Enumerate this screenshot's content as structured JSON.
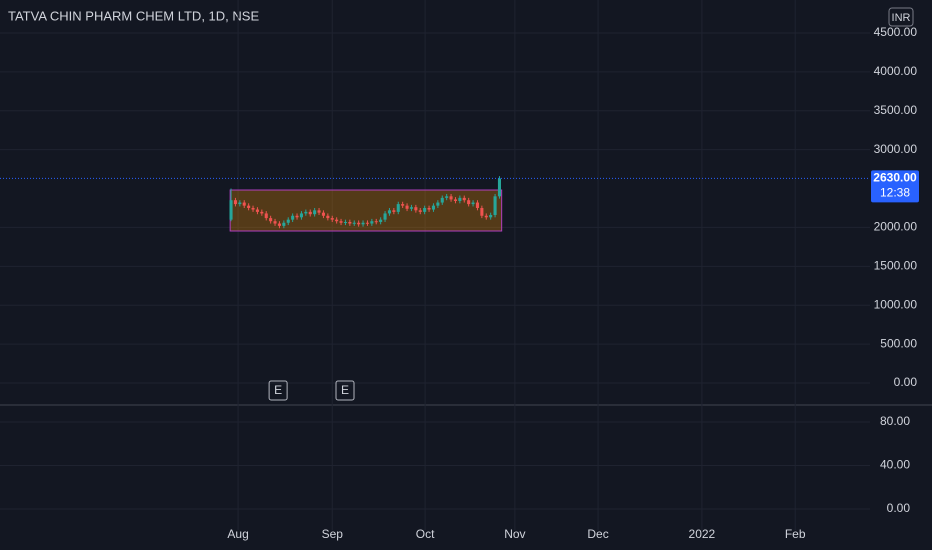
{
  "chart_data": {
    "type": "candlestick",
    "title": "TATVA CHIN PHARM CHEM LTD, 1D, NSE",
    "currency": "INR",
    "up_color": "#26a69a",
    "down_color": "#ef5350",
    "open": [
      2100,
      2350,
      2300,
      2320,
      2280,
      2250,
      2230,
      2200,
      2180,
      2120,
      2080,
      2050,
      2020,
      2060,
      2100,
      2150,
      2130,
      2180,
      2200,
      2170,
      2220,
      2190,
      2150,
      2120,
      2100,
      2080,
      2060,
      2070,
      2050,
      2060,
      2040,
      2060,
      2050,
      2080,
      2070,
      2100,
      2180,
      2220,
      2200,
      2300,
      2280,
      2240,
      2260,
      2220,
      2200,
      2250,
      2230,
      2280,
      2320,
      2380,
      2400,
      2360,
      2340,
      2380,
      2350,
      2300,
      2320,
      2250,
      2150,
      2130,
      2160,
      2400
    ],
    "high": [
      2500,
      2380,
      2350,
      2350,
      2310,
      2280,
      2260,
      2230,
      2210,
      2150,
      2110,
      2080,
      2090,
      2130,
      2180,
      2180,
      2210,
      2230,
      2230,
      2250,
      2250,
      2220,
      2180,
      2150,
      2130,
      2110,
      2100,
      2100,
      2090,
      2090,
      2090,
      2090,
      2110,
      2110,
      2130,
      2210,
      2250,
      2250,
      2330,
      2330,
      2310,
      2290,
      2290,
      2250,
      2280,
      2280,
      2310,
      2350,
      2410,
      2430,
      2430,
      2390,
      2410,
      2410,
      2380,
      2350,
      2350,
      2280,
      2180,
      2190,
      2430,
      2660
    ],
    "low": [
      2080,
      2270,
      2270,
      2250,
      2220,
      2200,
      2170,
      2150,
      2090,
      2050,
      2020,
      1990,
      1990,
      2030,
      2070,
      2100,
      2100,
      2150,
      2140,
      2140,
      2160,
      2120,
      2090,
      2070,
      2050,
      2030,
      2030,
      2020,
      2020,
      2010,
      2010,
      2020,
      2020,
      2040,
      2040,
      2070,
      2150,
      2170,
      2170,
      2250,
      2210,
      2210,
      2190,
      2170,
      2170,
      2200,
      2200,
      2250,
      2290,
      2350,
      2330,
      2310,
      2310,
      2320,
      2270,
      2270,
      2220,
      2120,
      2100,
      2100,
      2130,
      2370
    ],
    "close": [
      2350,
      2300,
      2320,
      2280,
      2250,
      2230,
      2200,
      2180,
      2120,
      2080,
      2050,
      2020,
      2060,
      2100,
      2150,
      2130,
      2180,
      2200,
      2170,
      2220,
      2190,
      2150,
      2120,
      2100,
      2080,
      2060,
      2070,
      2050,
      2060,
      2040,
      2060,
      2050,
      2080,
      2070,
      2100,
      2180,
      2220,
      2200,
      2300,
      2280,
      2240,
      2260,
      2220,
      2200,
      2250,
      2230,
      2280,
      2320,
      2380,
      2400,
      2360,
      2340,
      2380,
      2350,
      2300,
      2320,
      2250,
      2150,
      2130,
      2160,
      2400,
      2630
    ],
    "last_price": {
      "value": 2630,
      "label": "2630.00"
    },
    "countdown": "12:38",
    "rectangle": {
      "x": [
        -0.2,
        61.5
      ],
      "y": [
        1954,
        2481
      ],
      "fill": "rgba(255,152,0,0.28)",
      "stroke": "#b03ec0"
    },
    "events": [
      {
        "label": "E",
        "x": 10.7
      },
      {
        "label": "E",
        "x": 25.9
      }
    ],
    "xlim": [
      -52.5,
      145.2
    ],
    "xticks": [
      {
        "value": 1.6,
        "label": "Aug"
      },
      {
        "value": 23,
        "label": "Sep"
      },
      {
        "value": 44.1,
        "label": "Oct"
      },
      {
        "value": 64.5,
        "label": "Nov"
      },
      {
        "value": 83.4,
        "label": "Dec"
      },
      {
        "value": 107,
        "label": "2022"
      },
      {
        "value": 128.2,
        "label": "Feb"
      }
    ],
    "ylim": [
      -283,
      4924
    ],
    "yticks": [
      {
        "value": 4500,
        "label": "4500.00"
      },
      {
        "value": 4000,
        "label": "4000.00"
      },
      {
        "value": 3500,
        "label": "3500.00"
      },
      {
        "value": 3000,
        "label": "3000.00"
      },
      {
        "value": 2000,
        "label": "2000.00"
      },
      {
        "value": 1500,
        "label": "1500.00"
      },
      {
        "value": 1000,
        "label": "1000.00"
      },
      {
        "value": 500,
        "label": "500.00"
      },
      {
        "value": 0,
        "label": "0.00"
      }
    ],
    "y2lim": [
      -19.3,
      95.6
    ],
    "y2ticks": [
      {
        "value": 80,
        "label": "80.00"
      },
      {
        "value": 40,
        "label": "40.00"
      },
      {
        "value": 0,
        "label": "0.00"
      }
    ],
    "grid": true
  }
}
